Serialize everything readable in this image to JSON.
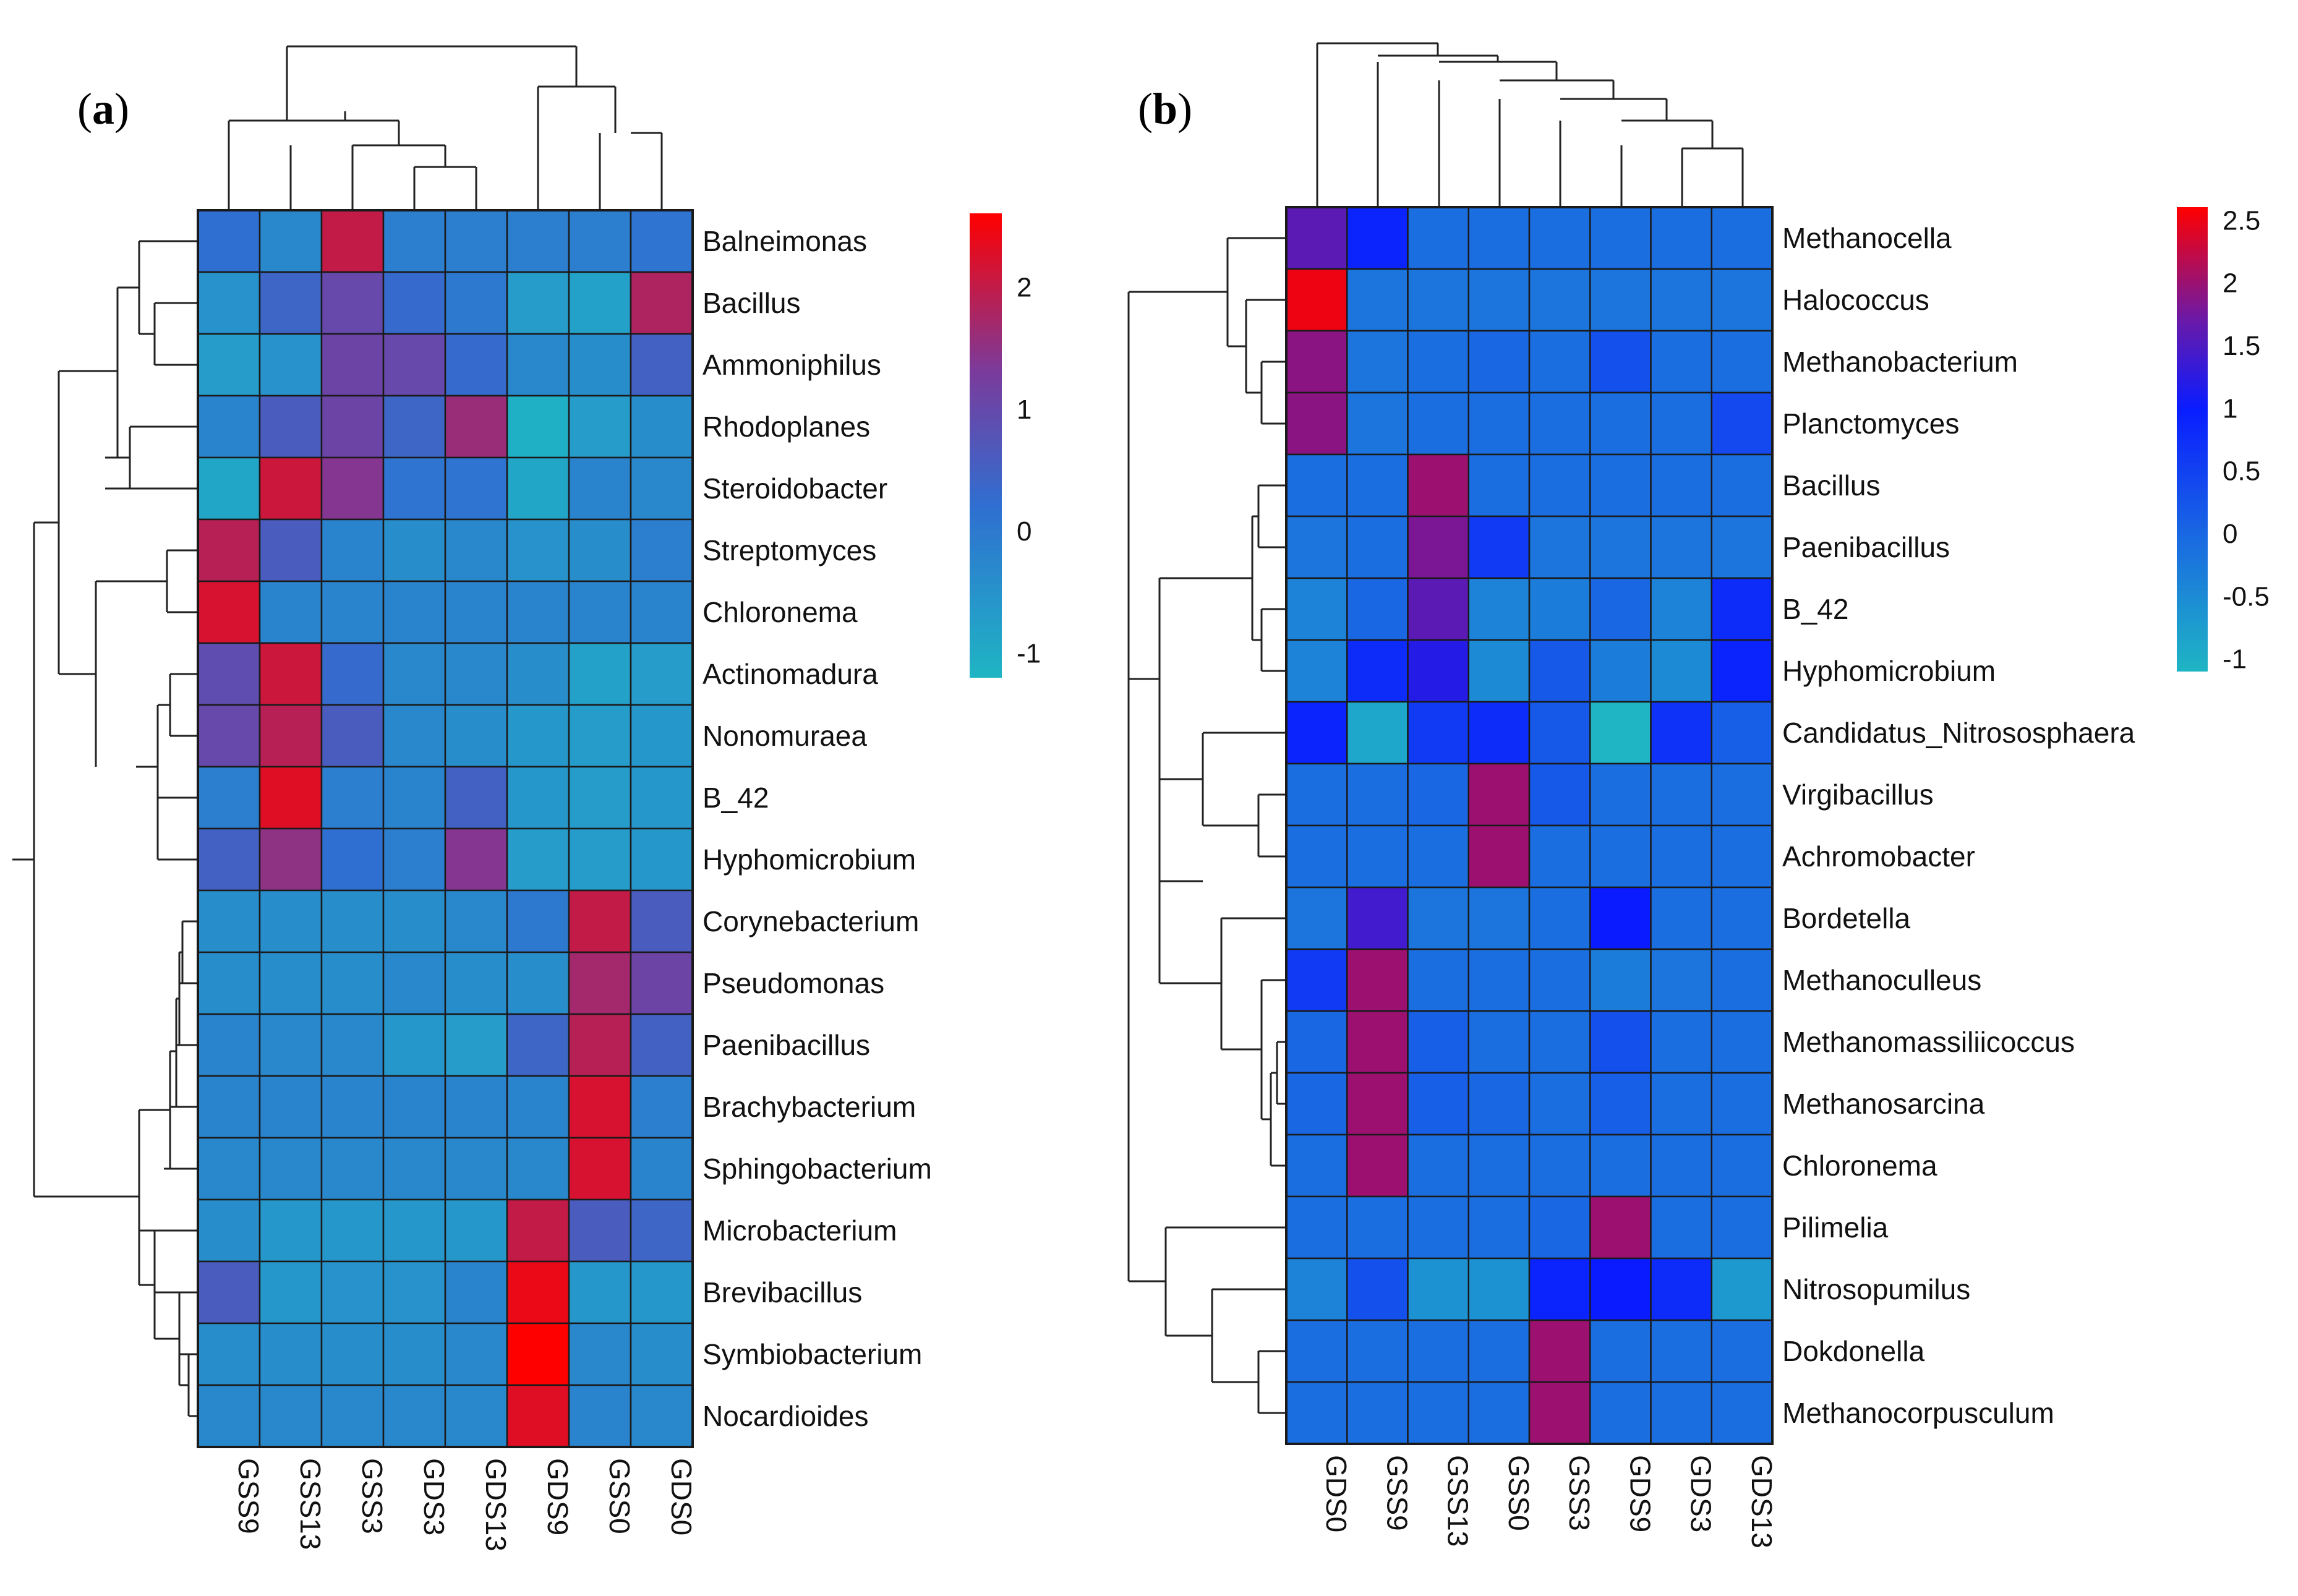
{
  "chart_data": [
    {
      "type": "heatmap",
      "panel_label": "a",
      "columns": [
        "GSS9",
        "GSS13",
        "GSS3",
        "GDS3",
        "GDS13",
        "GDS9",
        "GSS0",
        "GDS0"
      ],
      "rows": [
        "Balneimonas",
        "Bacillus",
        "Ammoniphilus",
        "Rhodoplanes",
        "Steroidobacter",
        "Streptomyces",
        "Chloronema",
        "Actinomadura",
        "Nonomuraea",
        "B_42",
        "Hyphomicrobium",
        "Corynebacterium",
        "Pseudomonas",
        "Paenibacillus",
        "Brachybacterium",
        "Sphingobacterium",
        "Microbacterium",
        "Brevibacillus",
        "Symbiobacterium",
        "Nocardioides"
      ],
      "values": [
        [
          0.2,
          -0.3,
          2.0,
          -0.1,
          -0.1,
          -0.1,
          -0.1,
          0.1
        ],
        [
          -0.5,
          0.4,
          1.0,
          0.3,
          0.0,
          -0.7,
          -0.8,
          1.8
        ],
        [
          -0.7,
          -0.5,
          1.1,
          1.0,
          0.3,
          -0.3,
          -0.4,
          0.5
        ],
        [
          -0.2,
          0.6,
          1.1,
          0.4,
          1.6,
          -1.1,
          -0.7,
          -0.4
        ],
        [
          -0.9,
          2.1,
          1.4,
          0.1,
          0.1,
          -0.9,
          -0.2,
          -0.3
        ],
        [
          1.9,
          0.6,
          -0.2,
          -0.4,
          -0.3,
          -0.5,
          -0.4,
          -0.1
        ],
        [
          2.2,
          -0.2,
          -0.2,
          -0.2,
          -0.2,
          -0.2,
          -0.2,
          -0.2
        ],
        [
          0.9,
          2.1,
          0.3,
          -0.3,
          -0.3,
          -0.4,
          -0.8,
          -0.7
        ],
        [
          1.0,
          1.9,
          0.6,
          -0.3,
          -0.4,
          -0.6,
          -0.7,
          -0.6
        ],
        [
          -0.1,
          2.3,
          -0.1,
          -0.2,
          0.5,
          -0.6,
          -0.7,
          -0.6
        ],
        [
          0.5,
          1.5,
          0.2,
          -0.1,
          1.4,
          -0.7,
          -0.7,
          -0.6
        ],
        [
          -0.4,
          -0.4,
          -0.4,
          -0.4,
          -0.3,
          0.0,
          2.0,
          0.6
        ],
        [
          -0.4,
          -0.4,
          -0.4,
          -0.3,
          -0.4,
          -0.4,
          1.7,
          1.1
        ],
        [
          -0.2,
          -0.3,
          -0.3,
          -0.6,
          -0.7,
          0.4,
          1.9,
          0.5
        ],
        [
          -0.2,
          -0.2,
          -0.2,
          -0.2,
          -0.2,
          -0.2,
          2.2,
          -0.1
        ],
        [
          -0.3,
          -0.3,
          -0.3,
          -0.3,
          -0.3,
          -0.3,
          2.2,
          -0.2
        ],
        [
          -0.4,
          -0.6,
          -0.6,
          -0.6,
          -0.6,
          2.0,
          0.6,
          0.4
        ],
        [
          0.6,
          -0.6,
          -0.5,
          -0.5,
          -0.2,
          2.4,
          -0.6,
          -0.6
        ],
        [
          -0.4,
          -0.4,
          -0.4,
          -0.4,
          -0.3,
          2.6,
          -0.3,
          -0.4
        ],
        [
          -0.3,
          -0.3,
          -0.3,
          -0.3,
          -0.3,
          2.3,
          -0.2,
          -0.3
        ]
      ],
      "colorbar": {
        "min": -1.2,
        "max": 2.6,
        "ticks": [
          2,
          1,
          0,
          -1
        ],
        "tick_labels": [
          "2",
          "1",
          "0",
          "-1"
        ]
      },
      "colors": {
        "low": "#1fb5c4",
        "mid": "#2f6fd1",
        "high": "#ff0000",
        "mid_high": "#7a3b9c"
      }
    },
    {
      "type": "heatmap",
      "panel_label": "b",
      "columns": [
        "GDS0",
        "GSS9",
        "GSS13",
        "GSS0",
        "GSS3",
        "GDS9",
        "GDS3",
        "GDS13"
      ],
      "rows": [
        "Methanocella",
        "Halococcus",
        "Methanobacterium",
        "Planctomyces",
        "Bacillus",
        "Paenibacillus",
        "B_42",
        "Hyphomicrobium",
        "Candidatus_Nitrososphaera",
        "Virgibacillus",
        "Achromobacter",
        "Bordetella",
        "Methanoculleus",
        "Methanomassiliicoccus",
        "Methanosarcina",
        "Chloronema",
        "Pilimelia",
        "Nitrosopumilus",
        "Dokdonella",
        "Methanocorpusculum"
      ],
      "values": [
        [
          1.6,
          0.9,
          -0.1,
          -0.1,
          -0.1,
          -0.1,
          -0.1,
          -0.1
        ],
        [
          2.5,
          -0.2,
          -0.2,
          -0.2,
          -0.2,
          -0.2,
          -0.2,
          -0.2
        ],
        [
          1.9,
          -0.2,
          -0.1,
          0.0,
          -0.1,
          0.3,
          -0.1,
          -0.1
        ],
        [
          1.9,
          -0.2,
          -0.1,
          -0.1,
          -0.1,
          -0.1,
          -0.1,
          0.4
        ],
        [
          -0.1,
          -0.1,
          2.0,
          -0.1,
          -0.1,
          -0.1,
          -0.1,
          -0.1
        ],
        [
          -0.2,
          -0.1,
          1.8,
          0.6,
          -0.2,
          -0.2,
          -0.2,
          -0.2
        ],
        [
          -0.4,
          0.0,
          1.6,
          -0.4,
          -0.3,
          0.0,
          -0.4,
          0.8
        ],
        [
          -0.4,
          0.8,
          1.2,
          -0.5,
          0.2,
          -0.3,
          -0.5,
          0.9
        ],
        [
          0.9,
          -0.9,
          0.6,
          0.8,
          0.2,
          -1.1,
          0.7,
          0.1
        ],
        [
          -0.1,
          -0.1,
          0.0,
          2.0,
          0.2,
          -0.1,
          -0.1,
          -0.1
        ],
        [
          -0.1,
          -0.1,
          -0.1,
          2.0,
          -0.1,
          -0.1,
          -0.1,
          -0.1
        ],
        [
          -0.2,
          1.4,
          -0.2,
          -0.2,
          -0.1,
          1.0,
          -0.1,
          -0.1
        ],
        [
          0.6,
          2.0,
          -0.1,
          -0.1,
          -0.1,
          -0.3,
          -0.2,
          -0.1
        ],
        [
          0.0,
          2.0,
          0.1,
          -0.1,
          -0.1,
          0.3,
          -0.1,
          -0.1
        ],
        [
          0.0,
          2.0,
          0.1,
          0.0,
          -0.1,
          0.1,
          -0.1,
          -0.1
        ],
        [
          -0.1,
          2.0,
          -0.1,
          -0.1,
          -0.1,
          -0.1,
          -0.1,
          -0.1
        ],
        [
          -0.1,
          -0.1,
          -0.1,
          -0.1,
          0.0,
          2.0,
          -0.1,
          -0.1
        ],
        [
          -0.4,
          0.3,
          -0.6,
          -0.6,
          0.9,
          1.0,
          0.8,
          -0.7
        ],
        [
          -0.1,
          -0.1,
          -0.1,
          -0.1,
          2.0,
          -0.1,
          -0.1,
          -0.1
        ],
        [
          -0.1,
          -0.1,
          -0.1,
          -0.1,
          2.0,
          -0.1,
          -0.1,
          -0.1
        ]
      ],
      "colorbar": {
        "min": -1.1,
        "max": 2.6,
        "ticks": [
          2.5,
          2,
          1.5,
          1,
          0.5,
          0,
          -0.5,
          -1
        ],
        "tick_labels": [
          "2.5",
          "2",
          "1.5",
          "1",
          "0.5",
          "0",
          "-0.5",
          "-1"
        ]
      },
      "colors": {
        "low": "#1fb5c4",
        "mid": "#1a6ee0",
        "upper": "#0a1cff",
        "high": "#ff0000",
        "mid_high": "#6a1aa8"
      }
    }
  ]
}
